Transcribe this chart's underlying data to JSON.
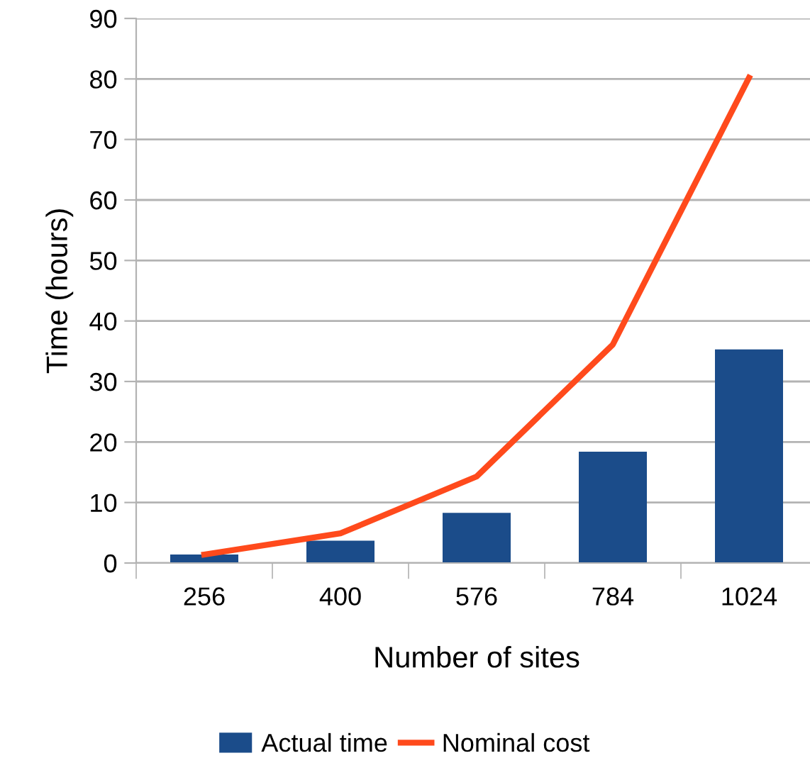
{
  "chart_data": {
    "type": "bar",
    "xlabel": "Number of sites",
    "ylabel": "Time (hours)",
    "categories": [
      "256",
      "400",
      "576",
      "784",
      "1024"
    ],
    "series": [
      {
        "name": "Actual time",
        "color": "#1b4c8a",
        "values": [
          1.4,
          3.7,
          8.3,
          18.4,
          35.3
        ]
      },
      {
        "name": "Nominal cost",
        "type": "line",
        "color": "#ff4a1c",
        "values": [
          1.4,
          4.9,
          14.3,
          36.1,
          80.2
        ]
      }
    ],
    "ylim": [
      0,
      90
    ],
    "yticks": [
      0,
      10,
      20,
      30,
      40,
      50,
      60,
      70,
      80,
      90
    ],
    "grid": "y",
    "legend": "bottom",
    "marker": "none",
    "line_style": "solid"
  }
}
